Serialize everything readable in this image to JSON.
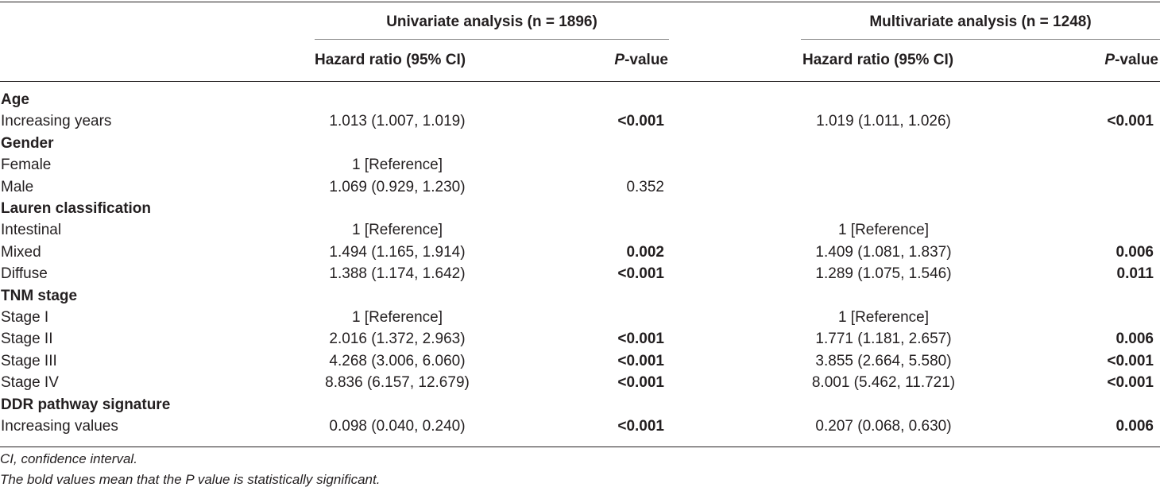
{
  "header": {
    "univariate_title": "Univariate analysis (n = 1896)",
    "multivariate_title": "Multivariate analysis (n = 1248)",
    "hr_label": "Hazard ratio (95% CI)",
    "p_label_italic": "P",
    "p_label_suffix": "-value"
  },
  "rows": [
    {
      "label": "Age",
      "uhr": "",
      "up": "",
      "mhr": "",
      "mp": ""
    },
    {
      "label": "Increasing years",
      "uhr": "1.013 (1.007, 1.019)",
      "up": "<0.001",
      "mhr": "1.019 (1.011, 1.026)",
      "mp": "<0.001"
    },
    {
      "label": "Gender",
      "uhr": "",
      "up": "",
      "mhr": "",
      "mp": ""
    },
    {
      "label": "Female",
      "uhr": "1 [Reference]",
      "up": "",
      "mhr": "",
      "mp": ""
    },
    {
      "label": "Male",
      "uhr": "1.069 (0.929, 1.230)",
      "up": "0.352",
      "mhr": "",
      "mp": ""
    },
    {
      "label": "Lauren classification",
      "uhr": "",
      "up": "",
      "mhr": "",
      "mp": ""
    },
    {
      "label": "Intestinal",
      "uhr": "1 [Reference]",
      "up": "",
      "mhr": "1 [Reference]",
      "mp": ""
    },
    {
      "label": "Mixed",
      "uhr": "1.494 (1.165, 1.914)",
      "up": "0.002",
      "mhr": "1.409 (1.081, 1.837)",
      "mp": "0.006"
    },
    {
      "label": "Diffuse",
      "uhr": "1.388 (1.174, 1.642)",
      "up": "<0.001",
      "mhr": "1.289 (1.075, 1.546)",
      "mp": "0.011"
    },
    {
      "label": "TNM stage",
      "uhr": "",
      "up": "",
      "mhr": "",
      "mp": ""
    },
    {
      "label": "Stage I",
      "uhr": "1 [Reference]",
      "up": "",
      "mhr": "1 [Reference]",
      "mp": ""
    },
    {
      "label": "Stage II",
      "uhr": "2.016 (1.372, 2.963)",
      "up": "<0.001",
      "mhr": "1.771 (1.181, 2.657)",
      "mp": "0.006"
    },
    {
      "label": "Stage III",
      "uhr": "4.268 (3.006, 6.060)",
      "up": "<0.001",
      "mhr": "3.855 (2.664, 5.580)",
      "mp": "<0.001"
    },
    {
      "label": "Stage IV",
      "uhr": "8.836 (6.157, 12.679)",
      "up": "<0.001",
      "mhr": "8.001 (5.462, 11.721)",
      "mp": "<0.001"
    },
    {
      "label": "DDR pathway signature",
      "uhr": "",
      "up": "",
      "mhr": "",
      "mp": ""
    },
    {
      "label": "Increasing values",
      "uhr": "0.098 (0.040, 0.240)",
      "up": "<0.001",
      "mhr": "0.207 (0.068, 0.630)",
      "mp": "0.006"
    }
  ],
  "footnotes": [
    "CI, confidence interval.",
    "The bold values mean that the P value is statistically significant."
  ]
}
